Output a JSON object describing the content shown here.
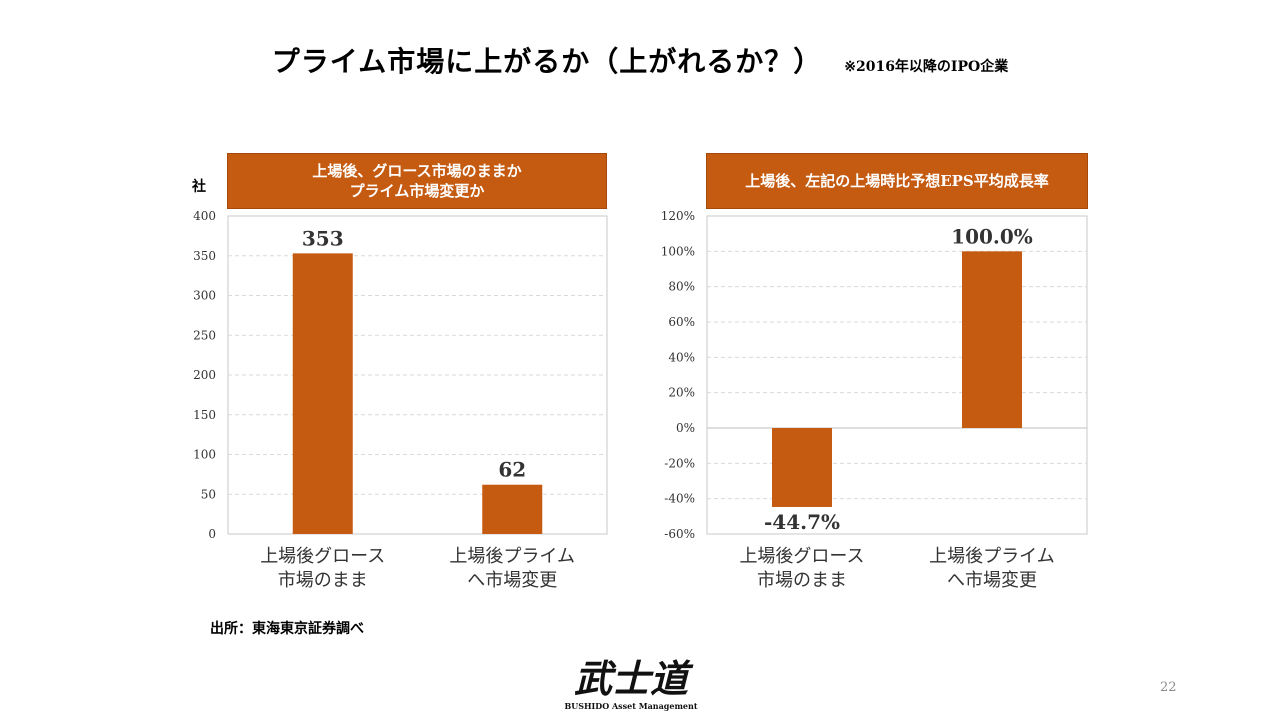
{
  "title": {
    "main": "プライム市場に上がるか（上がれるか？）",
    "note": "※2016年以降のIPO企業"
  },
  "chart_data": [
    {
      "type": "bar",
      "title": "上場後、グロース市場のままか\nプライム市場変更か",
      "ylabel": "社",
      "categories": [
        "上場後グロース\n市場のまま",
        "上場後プライム\nへ市場変更"
      ],
      "values": [
        353,
        62
      ],
      "data_labels": [
        "353",
        "62"
      ],
      "ylim": [
        0,
        400
      ],
      "yticks": [
        0,
        50,
        100,
        150,
        200,
        250,
        300,
        350,
        400
      ],
      "ytick_labels": [
        "0",
        "50",
        "100",
        "150",
        "200",
        "250",
        "300",
        "350",
        "400"
      ],
      "grid": true,
      "bar_color": "#c55a11"
    },
    {
      "type": "bar",
      "title": "上場後、左記の上場時比予想EPS平均成長率",
      "categories": [
        "上場後グロース\n市場のまま",
        "上場後プライム\nへ市場変更"
      ],
      "values": [
        -44.7,
        100.0
      ],
      "data_labels": [
        "-44.7%",
        "100.0%"
      ],
      "ylim": [
        -60,
        120
      ],
      "yticks": [
        -60,
        -40,
        -20,
        0,
        20,
        40,
        60,
        80,
        100,
        120
      ],
      "ytick_labels": [
        "-60%",
        "-40%",
        "-20%",
        "0%",
        "20%",
        "40%",
        "60%",
        "80%",
        "100%",
        "120%"
      ],
      "grid": true,
      "bar_color": "#c55a11"
    }
  ],
  "footer": {
    "source": "出所：東海東京証券調べ",
    "logo_text": "武士道",
    "logo_subtext": "BUSHIDO Asset Management",
    "page_number": "22"
  }
}
